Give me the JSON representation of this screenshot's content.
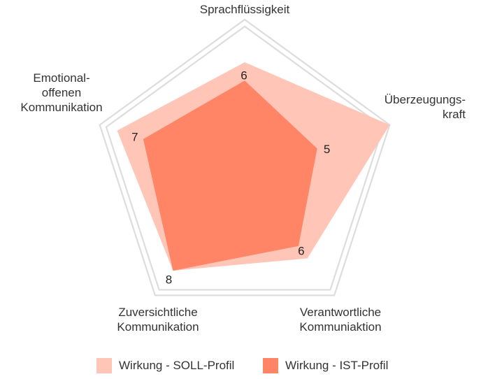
{
  "chart_data": {
    "type": "radar",
    "axes": [
      {
        "label": [
          "Sprachflüssigkeit"
        ]
      },
      {
        "label": [
          "Überzeugungs-",
          "kraft"
        ]
      },
      {
        "label": [
          "Verantwortliche",
          "Kommuniaktion"
        ]
      },
      {
        "label": [
          "Zuversichtliche",
          "Kommunikation"
        ]
      },
      {
        "label": [
          "Emotional-",
          "offenen",
          "Kommunikation"
        ]
      }
    ],
    "range": [
      0,
      10
    ],
    "series": [
      {
        "name": "Wirkung - SOLL-Profil",
        "color": "#ffc6b8",
        "values": [
          7.2,
          10,
          7,
          8,
          8.8
        ]
      },
      {
        "name": "Wirkung - IST-Profil",
        "color": "#ff8566",
        "values": [
          6,
          5,
          6,
          8,
          7
        ]
      }
    ],
    "value_labels": [
      "6",
      "5",
      "6",
      "8",
      "7"
    ],
    "grid_color": "#dddddd"
  }
}
